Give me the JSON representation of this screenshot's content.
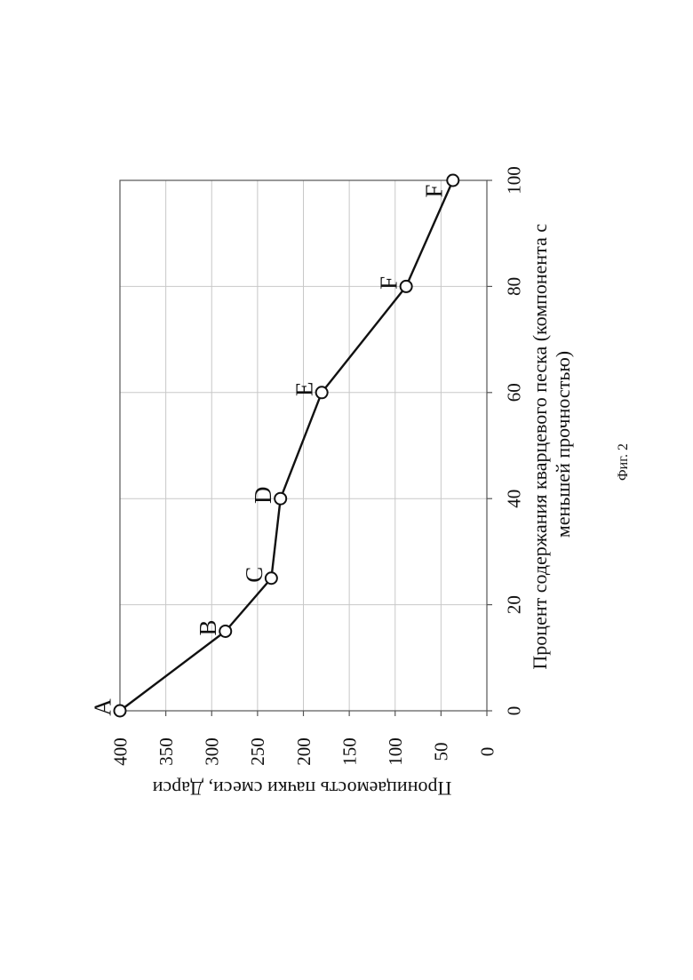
{
  "chart_data": {
    "type": "line",
    "xlabel": "Процент содержания кварцевого песка (компонента с меньшей прочностью)",
    "xlabel_lines": [
      "Процент содержания кварцевого песка (компонента с",
      "меньшей прочностью)"
    ],
    "ylabel": "Проницаемость пачки смеси, Дарси",
    "x_ticks": [
      "0",
      "20",
      "40",
      "60",
      "80",
      "100"
    ],
    "y_ticks": [
      "0",
      "50",
      "100",
      "150",
      "200",
      "250",
      "300",
      "350",
      "400"
    ],
    "xlim": [
      0,
      100
    ],
    "ylim": [
      0,
      400
    ],
    "grid": true,
    "orientation": "rotated-90-counterclockwise",
    "series": [
      {
        "points": [
          {
            "label": "A",
            "x": 0,
            "y": 400
          },
          {
            "label": "B",
            "x": 15,
            "y": 285
          },
          {
            "label": "C",
            "x": 25,
            "y": 235
          },
          {
            "label": "D",
            "x": 40,
            "y": 225
          },
          {
            "label": "E",
            "x": 60,
            "y": 180
          },
          {
            "label": "F",
            "x": 80,
            "y": 88
          },
          {
            "label": "",
            "x": 100,
            "y": 37
          }
        ]
      }
    ],
    "corner_label": "F"
  },
  "caption": "Фиг. 2"
}
